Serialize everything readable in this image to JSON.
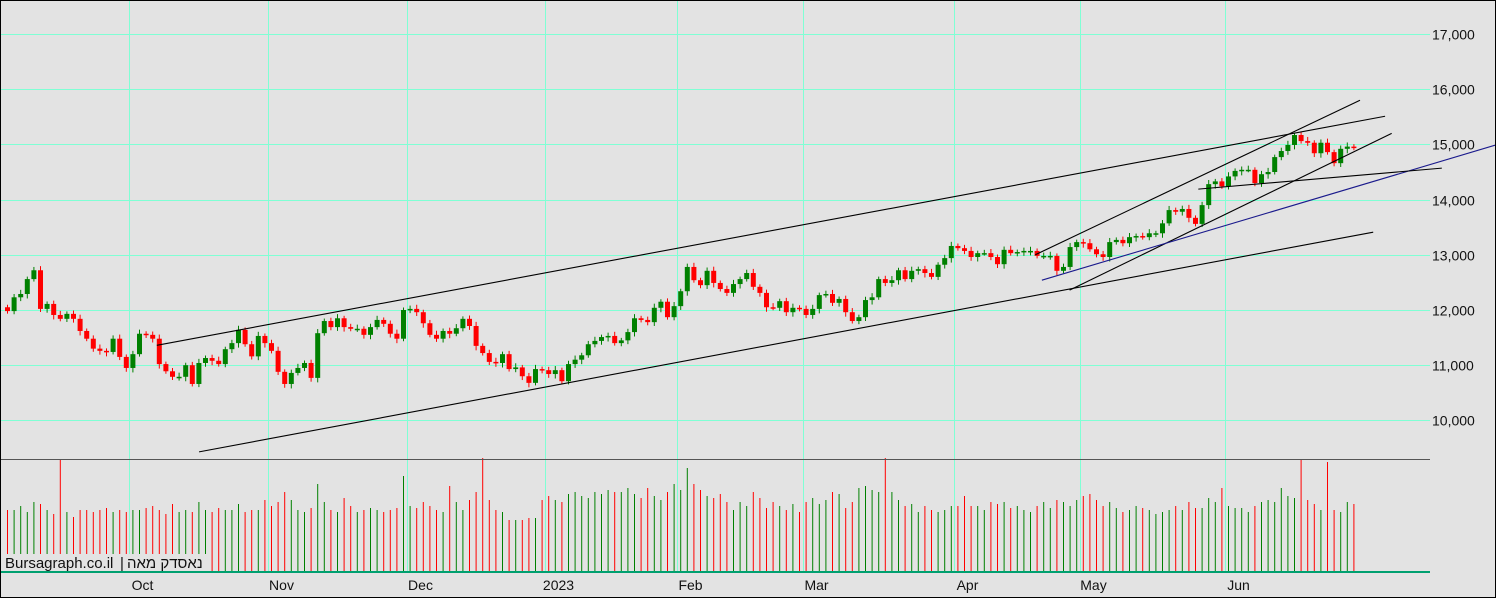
{
  "chart_data": {
    "type": "candlestick",
    "title": "נאסדק מאה",
    "watermark": "Bursagraph.co.il | נאסדק מאה",
    "source_label": "Bursagraph.co.il",
    "instrument_label": "נאסדק מאה",
    "ylim": [
      9400,
      17500
    ],
    "y_ticks": [
      17000,
      16000,
      15000,
      14000,
      13000,
      12000,
      11000,
      10000
    ],
    "y_tick_labels": [
      "17,000",
      "16,000",
      "15,000",
      "14,000",
      "13,000",
      "12,000",
      "11,000",
      "10,000"
    ],
    "x_month_labels": [
      {
        "label": "Oct",
        "index": 19
      },
      {
        "label": "Nov",
        "index": 40
      },
      {
        "label": "Dec",
        "index": 61
      },
      {
        "label": "2023",
        "index": 82
      },
      {
        "label": "Feb",
        "index": 102
      },
      {
        "label": "Mar",
        "index": 121
      },
      {
        "label": "Apr",
        "index": 144
      },
      {
        "label": "May",
        "index": 163
      },
      {
        "label": "Jun",
        "index": 185
      }
    ],
    "first_open": 12050,
    "close": [
      11980,
      12230,
      12290,
      12560,
      12720,
      12020,
      12110,
      11910,
      11840,
      11930,
      11840,
      11620,
      11480,
      11300,
      11260,
      11240,
      11480,
      11150,
      10950,
      11200,
      11570,
      11550,
      11480,
      11020,
      10890,
      10790,
      10790,
      11000,
      10660,
      11040,
      11130,
      11080,
      11020,
      11290,
      11400,
      11640,
      11380,
      11160,
      11530,
      11400,
      11260,
      10880,
      10660,
      10860,
      10950,
      11040,
      10770,
      11580,
      11800,
      11690,
      11850,
      11690,
      11660,
      11660,
      11550,
      11690,
      11820,
      11750,
      11570,
      11480,
      12000,
      12020,
      11960,
      11760,
      11550,
      11480,
      11620,
      11570,
      11670,
      11840,
      11710,
      11350,
      11220,
      11060,
      11040,
      11200,
      10930,
      10960,
      10800,
      10680,
      10930,
      10910,
      10840,
      10910,
      10710,
      11020,
      11100,
      11180,
      11380,
      11440,
      11510,
      11530,
      11400,
      11450,
      11600,
      11850,
      11820,
      11780,
      12040,
      12150,
      11870,
      12070,
      12340,
      12780,
      12540,
      12450,
      12710,
      12490,
      12380,
      12310,
      12470,
      12560,
      12670,
      12420,
      12310,
      12050,
      12040,
      12160,
      11960,
      12040,
      12020,
      11910,
      12020,
      12270,
      12290,
      12130,
      12200,
      11960,
      11800,
      11870,
      12180,
      12230,
      12560,
      12490,
      12540,
      12720,
      12560,
      12710,
      12740,
      12670,
      12600,
      12820,
      12940,
      13160,
      13120,
      13070,
      12960,
      13030,
      13030,
      12960,
      12830,
      13090,
      13030,
      13050,
      13070,
      13070,
      12980,
      12980,
      12980,
      12710,
      12780,
      13140,
      13230,
      13210,
      13100,
      13010,
      12960,
      13230,
      13270,
      13210,
      13320,
      13340,
      13320,
      13390,
      13390,
      13570,
      13810,
      13780,
      13830,
      13670,
      13560,
      13900,
      14280,
      14330,
      14240,
      14420,
      14520,
      14540,
      14540,
      14300,
      14460,
      14500,
      14770,
      14880,
      14990,
      15170,
      15060,
      15030,
      14840,
      15030,
      14860,
      14660,
      14920,
      14960,
      14940
    ],
    "volume_relative": [
      62,
      62,
      66,
      60,
      70,
      68,
      62,
      58,
      112,
      60,
      55,
      62,
      62,
      60,
      62,
      64,
      60,
      62,
      60,
      62,
      62,
      64,
      66,
      62,
      58,
      68,
      60,
      62,
      60,
      70,
      62,
      60,
      64,
      62,
      62,
      68,
      60,
      62,
      62,
      72,
      66,
      70,
      80,
      72,
      62,
      60,
      64,
      88,
      70,
      62,
      60,
      74,
      66,
      60,
      62,
      64,
      62,
      60,
      62,
      64,
      96,
      66,
      64,
      70,
      66,
      62,
      60,
      86,
      70,
      62,
      72,
      80,
      114,
      72,
      62,
      60,
      52,
      52,
      52,
      54,
      54,
      72,
      76,
      72,
      70,
      78,
      80,
      76,
      74,
      80,
      78,
      82,
      80,
      80,
      84,
      78,
      74,
      84,
      76,
      72,
      80,
      88,
      82,
      104,
      88,
      82,
      76,
      74,
      78,
      70,
      62,
      70,
      66,
      80,
      74,
      64,
      70,
      66,
      62,
      68,
      60,
      70,
      74,
      68,
      72,
      80,
      78,
      64,
      70,
      84,
      86,
      82,
      80,
      114,
      80,
      72,
      66,
      68,
      60,
      66,
      62,
      60,
      62,
      66,
      66,
      76,
      66,
      66,
      62,
      70,
      68,
      70,
      64,
      66,
      62,
      60,
      66,
      70,
      64,
      72,
      70,
      66,
      72,
      76,
      78,
      72,
      66,
      70,
      64,
      60,
      62,
      66,
      64,
      62,
      58,
      60,
      62,
      66,
      62,
      70,
      64,
      64,
      74,
      70,
      84,
      66,
      64,
      64,
      60,
      66,
      70,
      72,
      70,
      84,
      76,
      74,
      113,
      72,
      68,
      62,
      110,
      62,
      60,
      70,
      68
    ],
    "trendlines": [
      {
        "name": "upper-channel",
        "from": [
          22.7,
          11360
        ],
        "to": [
          208.8,
          15510
        ],
        "color": "#000000"
      },
      {
        "name": "lower-channel",
        "from": [
          29.1,
          9430
        ],
        "to": [
          207,
          13410
        ],
        "color": "#000000"
      },
      {
        "name": "steep-upper",
        "from": [
          155.8,
          13000
        ],
        "to": [
          205,
          15800
        ],
        "color": "#000000"
      },
      {
        "name": "steep-lower",
        "from": [
          161,
          12360
        ],
        "to": [
          209.8,
          15200
        ],
        "color": "#000000"
      },
      {
        "name": "blue-support",
        "from": [
          156.8,
          12540
        ],
        "to": [
          225.6,
          14990
        ],
        "color": "#1a1a8c"
      },
      {
        "name": "flat-support",
        "from": [
          180.5,
          14190
        ],
        "to": [
          217.4,
          14570
        ],
        "color": "#000000"
      }
    ],
    "colors": {
      "up": "#008000",
      "down": "#ff0000",
      "grid": "#7fffd4",
      "background": "#e3e3e3",
      "baseline": "#00a070"
    }
  }
}
